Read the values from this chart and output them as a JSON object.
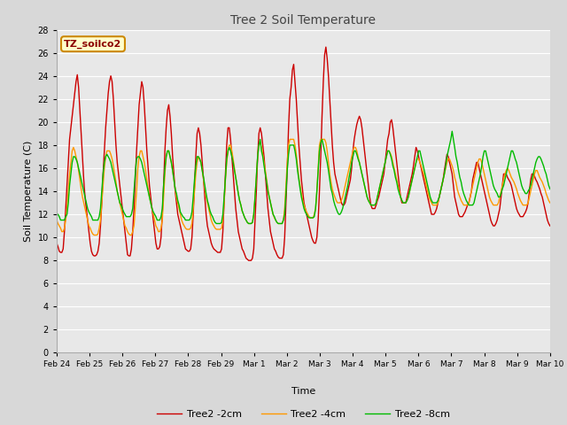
{
  "title": "Tree 2 Soil Temperature",
  "xlabel": "Time",
  "ylabel": "Soil Temperature (C)",
  "ylim": [
    0,
    28
  ],
  "yticks": [
    0,
    2,
    4,
    6,
    8,
    10,
    12,
    14,
    16,
    18,
    20,
    22,
    24,
    26,
    28
  ],
  "annotation_text": "TZ_soilco2",
  "annotation_bg": "#ffffcc",
  "annotation_border": "#cc8800",
  "fig_bg": "#d8d8d8",
  "plot_bg": "#e8e8e8",
  "line_colors": {
    "2cm": "#cc0000",
    "4cm": "#ff9900",
    "8cm": "#00bb00"
  },
  "legend_labels": [
    "Tree2 -2cm",
    "Tree2 -4cm",
    "Tree2 -8cm"
  ],
  "xtick_labels": [
    "Feb 24",
    "Feb 25",
    "Feb 26",
    "Feb 27",
    "Feb 28",
    "Feb 29",
    "Mar 1",
    "Mar 2",
    "Mar 3",
    "Mar 4",
    "Mar 5",
    "Mar 6",
    "Mar 7",
    "Mar 8",
    "Mar 9",
    "Mar 10"
  ],
  "n_points": 384,
  "t_2cm": [
    9.5,
    9.2,
    8.8,
    8.7,
    8.7,
    9.0,
    10.5,
    12.5,
    14.5,
    16.5,
    18.5,
    19.5,
    20.5,
    21.5,
    22.5,
    23.5,
    24.1,
    23.0,
    21.0,
    19.0,
    17.0,
    15.0,
    13.5,
    12.5,
    11.5,
    10.5,
    9.5,
    8.8,
    8.5,
    8.4,
    8.4,
    8.5,
    8.8,
    9.5,
    11.0,
    13.0,
    15.5,
    17.5,
    19.5,
    21.0,
    22.5,
    23.5,
    24.0,
    23.5,
    22.0,
    20.0,
    18.0,
    16.5,
    15.5,
    14.5,
    13.5,
    12.5,
    11.5,
    10.5,
    9.5,
    8.5,
    8.4,
    8.4,
    9.0,
    10.5,
    12.5,
    15.0,
    17.5,
    19.5,
    21.5,
    22.5,
    23.5,
    23.0,
    21.5,
    19.5,
    17.5,
    16.0,
    14.5,
    13.5,
    12.5,
    11.5,
    10.5,
    9.5,
    9.0,
    9.0,
    9.2,
    10.0,
    12.0,
    14.5,
    17.5,
    19.5,
    21.0,
    21.5,
    20.5,
    19.0,
    17.0,
    15.5,
    14.0,
    13.0,
    12.0,
    11.5,
    11.0,
    10.5,
    10.0,
    9.5,
    9.0,
    8.9,
    8.8,
    8.8,
    9.0,
    10.0,
    12.0,
    14.5,
    17.0,
    19.0,
    19.5,
    19.0,
    18.0,
    16.5,
    15.0,
    13.5,
    12.0,
    11.0,
    10.5,
    10.0,
    9.5,
    9.2,
    9.0,
    8.9,
    8.8,
    8.7,
    8.7,
    8.7,
    9.0,
    10.5,
    13.0,
    15.5,
    18.0,
    19.5,
    19.5,
    18.5,
    17.0,
    15.5,
    14.0,
    12.5,
    11.5,
    10.5,
    10.0,
    9.5,
    9.0,
    8.8,
    8.5,
    8.2,
    8.1,
    8.0,
    8.0,
    8.0,
    8.2,
    9.0,
    11.5,
    14.0,
    17.0,
    19.0,
    19.5,
    19.0,
    18.0,
    17.0,
    15.5,
    14.0,
    12.5,
    11.5,
    10.5,
    10.0,
    9.5,
    9.0,
    8.8,
    8.5,
    8.3,
    8.2,
    8.2,
    8.2,
    8.5,
    10.0,
    13.0,
    16.0,
    19.5,
    22.0,
    23.0,
    24.5,
    25.0,
    23.5,
    22.0,
    20.0,
    18.0,
    16.5,
    15.0,
    14.0,
    13.0,
    12.5,
    12.0,
    11.5,
    11.0,
    10.5,
    10.0,
    9.7,
    9.5,
    9.5,
    10.0,
    11.5,
    14.0,
    17.0,
    20.5,
    23.5,
    25.8,
    26.5,
    25.5,
    24.0,
    22.0,
    20.0,
    18.0,
    16.5,
    15.5,
    15.0,
    14.5,
    14.0,
    13.5,
    13.0,
    12.8,
    12.8,
    13.0,
    13.5,
    14.0,
    14.5,
    15.0,
    16.0,
    17.5,
    18.5,
    19.2,
    19.8,
    20.2,
    20.5,
    20.2,
    19.5,
    18.5,
    17.5,
    16.5,
    15.5,
    14.5,
    13.5,
    12.8,
    12.5,
    12.5,
    12.5,
    12.8,
    13.2,
    13.5,
    14.0,
    14.5,
    15.0,
    15.5,
    16.5,
    17.5,
    18.5,
    19.0,
    20.0,
    20.2,
    19.5,
    18.5,
    17.5,
    16.5,
    15.5,
    14.5,
    13.5,
    13.0,
    13.0,
    13.0,
    13.0,
    13.5,
    14.0,
    14.5,
    15.0,
    15.5,
    16.2,
    17.0,
    17.8,
    17.5,
    17.0,
    16.5,
    16.0,
    15.5,
    15.0,
    14.5,
    14.0,
    13.5,
    13.0,
    12.5,
    12.0,
    12.0,
    12.0,
    12.2,
    12.5,
    13.0,
    13.5,
    14.0,
    14.5,
    15.0,
    15.8,
    16.5,
    17.2,
    17.0,
    16.5,
    16.0,
    15.5,
    14.5,
    13.5,
    13.0,
    12.5,
    12.0,
    11.8,
    11.8,
    11.8,
    12.0,
    12.2,
    12.5,
    12.8,
    13.0,
    13.5,
    14.0,
    15.0,
    15.5,
    16.0,
    16.5,
    16.5,
    16.0,
    15.5,
    15.0,
    14.5,
    14.0,
    13.5,
    13.0,
    12.5,
    12.0,
    11.5,
    11.2,
    11.0,
    11.0,
    11.2,
    11.5,
    12.0,
    12.5,
    13.5,
    14.5,
    15.5,
    15.5,
    15.5,
    15.2,
    15.0,
    14.8,
    14.5,
    14.0,
    13.5,
    13.0,
    12.5,
    12.2,
    12.0,
    11.8,
    11.8,
    11.8,
    12.0,
    12.2,
    12.5,
    13.0,
    14.0,
    15.0,
    15.5,
    15.5,
    15.3,
    15.0,
    14.8,
    14.5,
    14.2,
    13.8,
    13.5,
    13.0,
    12.5,
    12.0,
    11.5,
    11.2,
    11.0
  ],
  "t_4cm": [
    11.5,
    11.2,
    11.0,
    10.8,
    10.5,
    10.5,
    10.8,
    11.5,
    12.5,
    14.0,
    15.5,
    16.5,
    17.5,
    17.8,
    17.5,
    17.0,
    16.5,
    15.8,
    15.0,
    14.2,
    13.5,
    13.0,
    12.5,
    12.0,
    11.5,
    11.0,
    10.8,
    10.5,
    10.3,
    10.2,
    10.2,
    10.2,
    10.3,
    10.8,
    11.5,
    13.0,
    14.5,
    16.0,
    17.0,
    17.5,
    17.5,
    17.5,
    17.2,
    16.8,
    16.2,
    15.5,
    14.8,
    14.0,
    13.5,
    13.0,
    12.5,
    12.0,
    11.5,
    11.0,
    10.8,
    10.5,
    10.3,
    10.2,
    10.2,
    10.5,
    11.0,
    12.5,
    14.0,
    16.0,
    17.0,
    17.5,
    17.5,
    17.0,
    16.5,
    15.8,
    15.0,
    14.2,
    13.5,
    13.0,
    12.5,
    12.0,
    11.5,
    11.0,
    10.8,
    10.5,
    10.5,
    10.8,
    11.5,
    13.5,
    15.5,
    17.0,
    17.5,
    17.5,
    17.0,
    16.5,
    15.8,
    15.0,
    14.2,
    13.5,
    13.0,
    12.5,
    12.0,
    11.5,
    11.2,
    11.0,
    10.8,
    10.7,
    10.7,
    10.7,
    10.8,
    11.2,
    12.5,
    14.0,
    15.5,
    16.5,
    17.0,
    16.8,
    16.5,
    15.8,
    15.0,
    14.2,
    13.5,
    13.0,
    12.5,
    12.0,
    11.5,
    11.2,
    11.0,
    10.8,
    10.7,
    10.7,
    10.7,
    10.7,
    10.8,
    11.5,
    13.0,
    15.0,
    16.5,
    17.5,
    18.0,
    18.0,
    17.5,
    16.8,
    16.0,
    15.2,
    14.5,
    13.8,
    13.2,
    12.8,
    12.3,
    12.0,
    11.7,
    11.5,
    11.3,
    11.2,
    11.2,
    11.2,
    11.3,
    12.0,
    13.5,
    15.2,
    17.0,
    18.0,
    18.2,
    17.8,
    17.2,
    16.5,
    15.8,
    15.0,
    14.2,
    13.5,
    13.0,
    12.5,
    12.0,
    11.7,
    11.5,
    11.3,
    11.2,
    11.2,
    11.2,
    11.2,
    11.5,
    12.5,
    14.5,
    16.5,
    18.0,
    18.5,
    18.5,
    18.5,
    18.5,
    18.0,
    17.2,
    16.2,
    15.2,
    14.5,
    13.8,
    13.2,
    12.8,
    12.5,
    12.2,
    12.0,
    11.8,
    11.7,
    11.7,
    11.7,
    12.0,
    12.5,
    14.0,
    16.0,
    18.0,
    18.5,
    18.5,
    18.5,
    18.5,
    18.2,
    17.5,
    16.5,
    15.5,
    14.8,
    14.2,
    13.8,
    13.5,
    13.2,
    13.0,
    13.0,
    13.0,
    13.2,
    13.5,
    14.0,
    14.5,
    15.0,
    15.5,
    16.0,
    16.5,
    17.0,
    17.5,
    17.8,
    17.8,
    17.5,
    17.0,
    16.5,
    16.0,
    15.5,
    15.0,
    14.5,
    14.0,
    13.5,
    13.2,
    13.0,
    12.8,
    12.8,
    12.8,
    12.8,
    13.0,
    13.5,
    14.0,
    14.5,
    15.0,
    15.5,
    16.0,
    16.5,
    17.0,
    17.5,
    17.5,
    17.3,
    17.0,
    16.5,
    16.0,
    15.5,
    15.0,
    14.5,
    14.0,
    13.5,
    13.2,
    13.0,
    13.0,
    13.0,
    13.2,
    13.5,
    14.0,
    14.5,
    15.0,
    15.5,
    16.0,
    16.5,
    16.8,
    16.8,
    16.5,
    16.2,
    15.8,
    15.5,
    15.0,
    14.5,
    14.0,
    13.5,
    13.2,
    13.0,
    12.8,
    12.8,
    12.8,
    12.8,
    13.0,
    13.5,
    14.0,
    14.5,
    15.0,
    15.5,
    16.0,
    16.5,
    16.8,
    16.8,
    16.5,
    16.2,
    15.8,
    15.2,
    14.8,
    14.2,
    13.8,
    13.5,
    13.2,
    13.0,
    12.8,
    12.8,
    12.8,
    12.8,
    13.0,
    13.5,
    14.0,
    14.5,
    15.0,
    15.5,
    16.0,
    16.5,
    16.8,
    16.8,
    16.5,
    16.0,
    15.5,
    15.0,
    14.5,
    14.0,
    13.5,
    13.2,
    13.0,
    12.8,
    12.8,
    12.8,
    12.8,
    13.0,
    13.5,
    14.0,
    14.5,
    15.0,
    15.5,
    15.8,
    16.0,
    15.8,
    15.5,
    15.2,
    15.0,
    14.8,
    14.5,
    14.2,
    13.8,
    13.5,
    13.2,
    13.0,
    12.8,
    12.8,
    12.8,
    12.8,
    13.0,
    13.5,
    14.0,
    14.5,
    15.0,
    15.5,
    15.8,
    15.8,
    15.5,
    15.2,
    15.0,
    14.8,
    14.5,
    14.2,
    13.8,
    13.5,
    13.2,
    13.0
  ],
  "t_8cm": [
    12.0,
    12.0,
    11.8,
    11.5,
    11.5,
    11.5,
    11.5,
    11.8,
    12.0,
    13.0,
    14.5,
    15.5,
    16.5,
    17.0,
    17.0,
    16.8,
    16.5,
    16.0,
    15.5,
    15.0,
    14.5,
    14.0,
    13.5,
    13.0,
    12.5,
    12.2,
    12.0,
    11.8,
    11.5,
    11.5,
    11.5,
    11.5,
    11.5,
    11.8,
    12.5,
    14.0,
    15.5,
    16.5,
    17.0,
    17.2,
    17.0,
    16.8,
    16.5,
    16.0,
    15.5,
    15.0,
    14.5,
    14.0,
    13.5,
    13.0,
    12.8,
    12.5,
    12.2,
    12.0,
    11.8,
    11.8,
    11.8,
    11.8,
    12.0,
    12.5,
    14.0,
    15.5,
    16.8,
    17.0,
    17.0,
    16.8,
    16.5,
    16.0,
    15.5,
    15.0,
    14.5,
    14.0,
    13.5,
    13.0,
    12.5,
    12.2,
    12.0,
    11.8,
    11.5,
    11.5,
    11.5,
    11.8,
    12.5,
    14.5,
    16.0,
    17.0,
    17.5,
    17.5,
    17.0,
    16.5,
    15.8,
    15.0,
    14.2,
    13.8,
    13.2,
    12.8,
    12.2,
    12.0,
    11.8,
    11.7,
    11.5,
    11.5,
    11.5,
    11.5,
    11.7,
    12.2,
    13.5,
    15.0,
    16.2,
    17.0,
    17.0,
    16.8,
    16.5,
    15.8,
    15.2,
    14.5,
    13.8,
    13.2,
    12.8,
    12.3,
    12.0,
    11.8,
    11.5,
    11.3,
    11.2,
    11.2,
    11.2,
    11.2,
    11.3,
    12.0,
    13.5,
    15.2,
    16.8,
    17.5,
    17.8,
    17.5,
    17.0,
    16.5,
    15.8,
    15.2,
    14.5,
    13.8,
    13.2,
    12.8,
    12.3,
    12.0,
    11.7,
    11.5,
    11.3,
    11.2,
    11.2,
    11.2,
    11.3,
    12.0,
    13.5,
    15.2,
    17.0,
    18.0,
    18.5,
    17.5,
    17.0,
    16.2,
    15.5,
    14.8,
    14.0,
    13.5,
    13.0,
    12.5,
    12.0,
    11.8,
    11.5,
    11.3,
    11.2,
    11.2,
    11.2,
    11.2,
    11.5,
    12.0,
    13.8,
    15.8,
    17.2,
    18.0,
    18.0,
    18.0,
    18.0,
    17.5,
    16.8,
    15.8,
    15.0,
    14.2,
    13.5,
    13.0,
    12.5,
    12.2,
    12.0,
    11.8,
    11.7,
    11.7,
    11.7,
    11.7,
    11.8,
    12.5,
    14.0,
    15.8,
    17.5,
    18.2,
    18.5,
    18.0,
    17.5,
    17.0,
    16.5,
    15.8,
    15.0,
    14.2,
    13.8,
    13.2,
    12.8,
    12.5,
    12.2,
    12.0,
    12.0,
    12.2,
    12.5,
    13.0,
    13.5,
    14.0,
    14.5,
    15.2,
    15.8,
    16.5,
    17.0,
    17.5,
    17.5,
    17.2,
    16.8,
    16.5,
    16.0,
    15.5,
    15.0,
    14.5,
    14.0,
    13.5,
    13.2,
    13.0,
    12.8,
    12.8,
    12.8,
    12.8,
    13.0,
    13.5,
    14.0,
    14.5,
    15.0,
    15.5,
    16.0,
    16.5,
    17.0,
    17.5,
    17.5,
    17.2,
    16.8,
    16.2,
    15.8,
    15.2,
    14.8,
    14.2,
    13.8,
    13.5,
    13.2,
    13.0,
    13.0,
    13.0,
    13.2,
    13.5,
    14.0,
    14.5,
    15.0,
    15.5,
    16.0,
    16.5,
    17.0,
    17.5,
    17.5,
    17.0,
    16.5,
    16.0,
    15.5,
    15.0,
    14.5,
    14.0,
    13.5,
    13.2,
    13.0,
    13.0,
    13.0,
    13.0,
    13.2,
    13.5,
    14.0,
    14.5,
    15.0,
    15.5,
    16.2,
    17.0,
    17.5,
    18.0,
    18.5,
    19.2,
    18.5,
    17.8,
    17.0,
    16.5,
    15.8,
    15.2,
    14.8,
    14.2,
    13.8,
    13.5,
    13.2,
    13.0,
    12.8,
    12.8,
    12.8,
    12.8,
    13.0,
    13.5,
    14.0,
    14.5,
    15.0,
    15.5,
    16.2,
    17.0,
    17.5,
    17.5,
    17.0,
    16.5,
    16.0,
    15.5,
    15.0,
    14.5,
    14.2,
    14.0,
    13.8,
    13.5,
    13.5,
    13.8,
    14.2,
    14.5,
    15.0,
    15.5,
    16.0,
    16.5,
    17.0,
    17.5,
    17.5,
    17.2,
    16.8,
    16.5,
    16.0,
    15.5,
    15.0,
    14.5,
    14.2,
    14.0,
    13.8,
    13.8,
    14.0,
    14.2,
    14.5,
    15.0,
    15.5,
    16.0,
    16.5,
    16.8,
    17.0,
    17.0,
    16.8,
    16.5,
    16.2,
    15.8,
    15.5,
    15.0,
    14.5,
    14.2
  ]
}
